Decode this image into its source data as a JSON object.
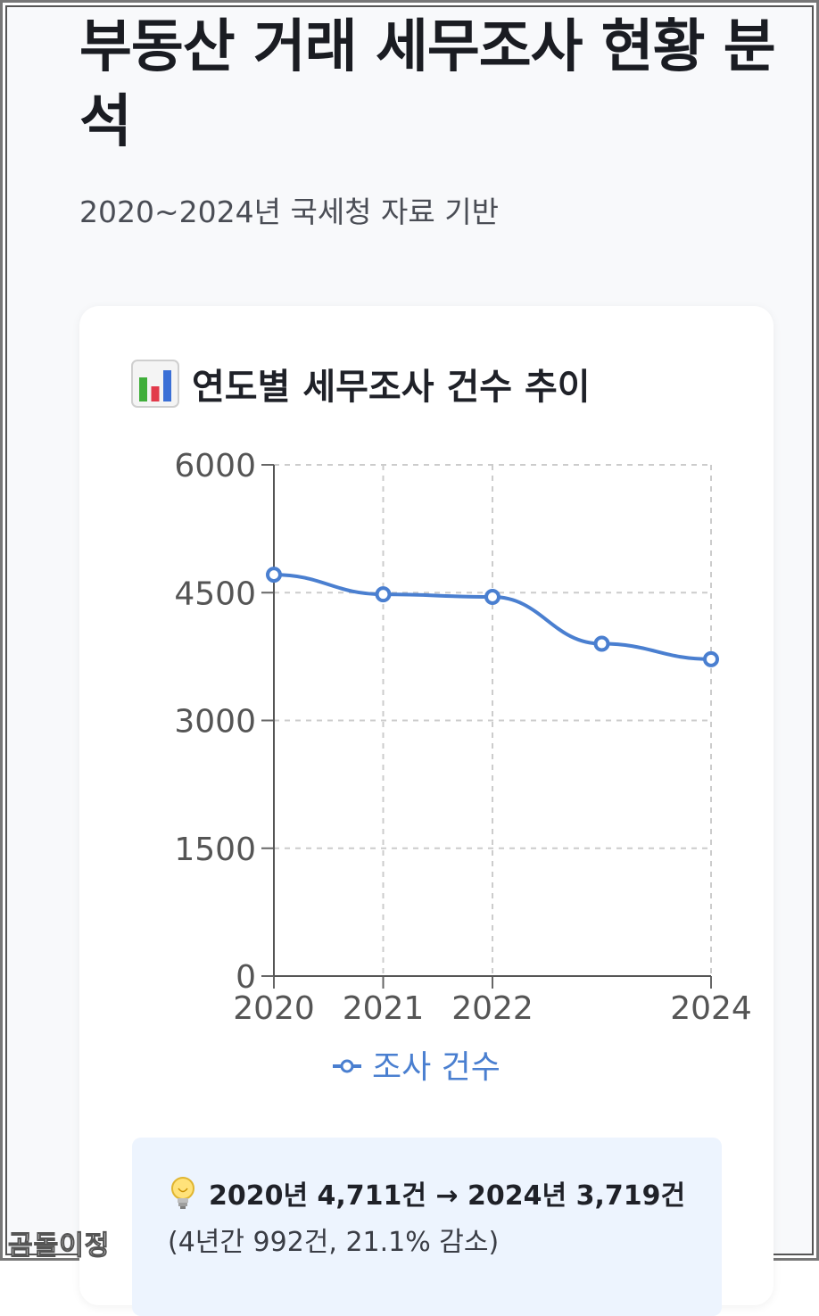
{
  "page": {
    "title": "부동산 거래 세무조사 현황 분석",
    "subtitle": "2020~2024년 국세청 자료 기반"
  },
  "card": {
    "title": "연도별 세무조사 건수 추이",
    "icon": "bar-chart-icon"
  },
  "chart_data": {
    "type": "line",
    "x": [
      2020,
      2021,
      2022,
      2023,
      2024
    ],
    "x_tick_labels": [
      "2020",
      "2021",
      "2022",
      "",
      "2024"
    ],
    "series": [
      {
        "name": "조사 건수",
        "values": [
          4711,
          4480,
          4450,
          3900,
          3719
        ],
        "color": "#4a7fd0"
      }
    ],
    "ylim": [
      0,
      6000
    ],
    "y_ticks": [
      "0",
      "1500",
      "3000",
      "4500",
      "6000"
    ],
    "grid": true,
    "legend": "bottom",
    "xlabel": "",
    "ylabel": ""
  },
  "insight": {
    "icon": "lightbulb-icon",
    "main": "2020년 4,711건 → 2024년 3,719건",
    "sub": "(4년간 992건, 21.1% 감소)"
  },
  "watermark": "곰돌이정"
}
